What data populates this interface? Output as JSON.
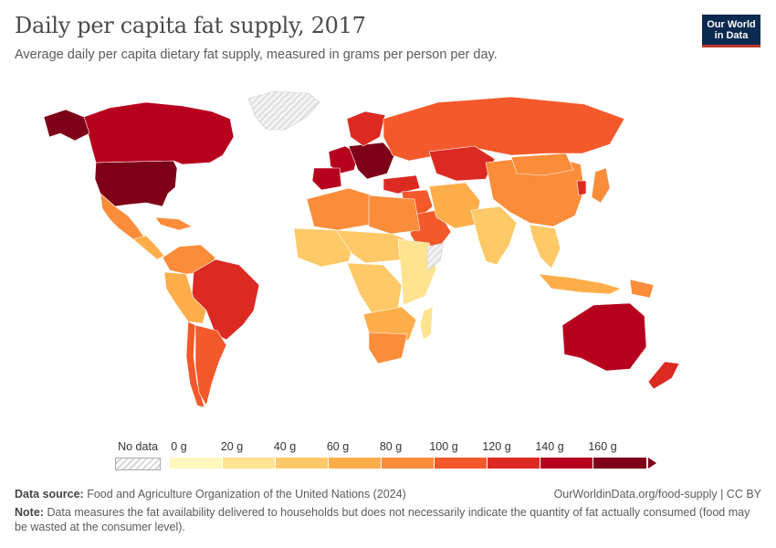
{
  "header": {
    "title": "Daily per capita fat supply, 2017",
    "subtitle": "Average daily per capita dietary fat supply, measured in grams per person per day."
  },
  "logo": {
    "line1": "Our World",
    "line2": "in Data"
  },
  "legend": {
    "no_data_label": "No data",
    "ticks": [
      "0 g",
      "20 g",
      "40 g",
      "60 g",
      "80 g",
      "100 g",
      "120 g",
      "140 g",
      "160 g"
    ],
    "colors": [
      "#fff7bc",
      "#fee391",
      "#fec966",
      "#fdae4b",
      "#fb8c3a",
      "#f3592b",
      "#dc2a23",
      "#b7001e",
      "#7d0018"
    ],
    "no_data_color": "#e6e6e6"
  },
  "map_regions": [
    {
      "name": "United States",
      "grams": 165
    },
    {
      "name": "Canada",
      "grams": 145
    },
    {
      "name": "Alaska",
      "grams": 160
    },
    {
      "name": "Greenland",
      "grams": null
    },
    {
      "name": "Mexico",
      "grams": 95
    },
    {
      "name": "Central America",
      "grams": 75
    },
    {
      "name": "Caribbean",
      "grams": 80
    },
    {
      "name": "Colombia & Venezuela",
      "grams": 85
    },
    {
      "name": "Brazil",
      "grams": 125
    },
    {
      "name": "Peru & Bolivia",
      "grams": 70
    },
    {
      "name": "Chile",
      "grams": 105
    },
    {
      "name": "Argentina",
      "grams": 110
    },
    {
      "name": "Western Europe",
      "grams": 150
    },
    {
      "name": "Central Europe",
      "grams": 160
    },
    {
      "name": "Scandinavia",
      "grams": 135
    },
    {
      "name": "Iberia",
      "grams": 150
    },
    {
      "name": "Russia",
      "grams": 110
    },
    {
      "name": "Kazakhstan",
      "grams": 120
    },
    {
      "name": "Turkey",
      "grams": 125
    },
    {
      "name": "Middle East",
      "grams": 100
    },
    {
      "name": "Saudi Arabia",
      "grams": 100
    },
    {
      "name": "Iran & Central Asia",
      "grams": 70
    },
    {
      "name": "India",
      "grams": 55
    },
    {
      "name": "China",
      "grams": 95
    },
    {
      "name": "Mongolia",
      "grams": 85
    },
    {
      "name": "Southeast Asia",
      "grams": 55
    },
    {
      "name": "Japan",
      "grams": 95
    },
    {
      "name": "South Korea",
      "grams": 130
    },
    {
      "name": "Indonesia",
      "grams": 75
    },
    {
      "name": "Papua New Guinea",
      "grams": 85
    },
    {
      "name": "Australia",
      "grams": 140
    },
    {
      "name": "New Zealand",
      "grams": 125
    },
    {
      "name": "North Africa",
      "grams": 85
    },
    {
      "name": "Libya & Egypt",
      "grams": 95
    },
    {
      "name": "West Africa",
      "grams": 55
    },
    {
      "name": "Sahel",
      "grams": 45
    },
    {
      "name": "Central Africa",
      "grams": 45
    },
    {
      "name": "East Africa",
      "grams": 35
    },
    {
      "name": "Somalia",
      "grams": null
    },
    {
      "name": "Southern Africa",
      "grams": 75
    },
    {
      "name": "South Africa",
      "grams": 80
    },
    {
      "name": "Madagascar",
      "grams": 25
    }
  ],
  "footer": {
    "source_label": "Data source:",
    "source_text": "Food and Agriculture Organization of the United Nations (2024)",
    "url": "OurWorldinData.org/food-supply | CC BY",
    "note_label": "Note:",
    "note_text": "Data measures the fat availability delivered to households but does not necessarily indicate the quantity of fat actually consumed (food may be wasted at the consumer level)."
  }
}
